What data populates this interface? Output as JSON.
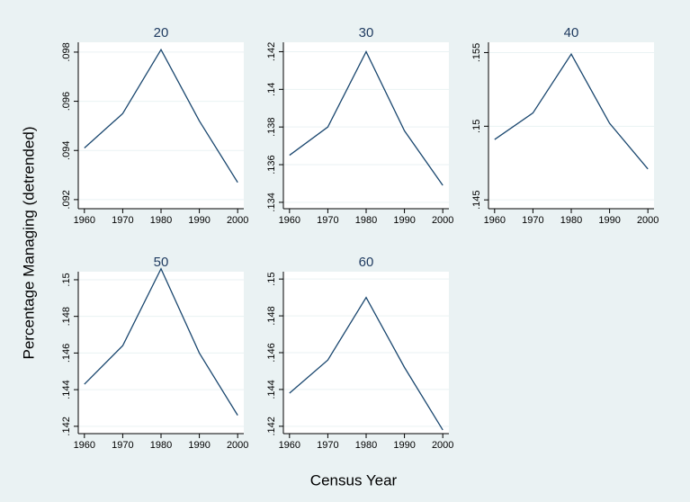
{
  "y_axis_label": "Percentage Managing (detrended)",
  "x_axis_label": "Census Year",
  "chart_data": [
    {
      "type": "line",
      "title": "20",
      "x": [
        1960,
        1970,
        1980,
        1990,
        2000
      ],
      "values": [
        0.0941,
        0.0955,
        0.0981,
        0.0952,
        0.0927
      ],
      "color": "#1a476f",
      "grid": true,
      "xlim": [
        1958.4,
        2001.6
      ],
      "xticks": [
        1960,
        1970,
        1980,
        1990,
        2000
      ],
      "ylim": [
        0.09163,
        0.0984
      ],
      "yticks": [
        {
          "value": 0.092,
          "label": ".092"
        },
        {
          "value": 0.094,
          "label": ".094"
        },
        {
          "value": 0.096,
          "label": ".096"
        },
        {
          "value": 0.098,
          "label": ".098"
        }
      ]
    },
    {
      "type": "line",
      "title": "30",
      "x": [
        1960,
        1970,
        1980,
        1990,
        2000
      ],
      "values": [
        0.1365,
        0.138,
        0.142,
        0.1378,
        0.1349
      ],
      "color": "#1a476f",
      "grid": true,
      "xlim": [
        1958.4,
        2001.6
      ],
      "xticks": [
        1960,
        1970,
        1980,
        1990,
        2000
      ],
      "ylim": [
        0.13366,
        0.1425
      ],
      "yticks": [
        {
          "value": 0.134,
          "label": ".134"
        },
        {
          "value": 0.136,
          "label": ".136"
        },
        {
          "value": 0.138,
          "label": ".138"
        },
        {
          "value": 0.14,
          "label": ".14"
        },
        {
          "value": 0.142,
          "label": ".142"
        }
      ]
    },
    {
      "type": "line",
      "title": "40",
      "x": [
        1960,
        1970,
        1980,
        1990,
        2000
      ],
      "values": [
        0.1491,
        0.1509,
        0.1549,
        0.1502,
        0.1471
      ],
      "color": "#1a476f",
      "grid": true,
      "xlim": [
        1958.4,
        2001.6
      ],
      "xticks": [
        1960,
        1970,
        1980,
        1990,
        2000
      ],
      "ylim": [
        0.1444,
        0.1557
      ],
      "yticks": [
        {
          "value": 0.145,
          "label": ".145"
        },
        {
          "value": 0.15,
          "label": ".15"
        },
        {
          "value": 0.155,
          "label": ".155"
        }
      ]
    },
    {
      "type": "line",
      "title": "50",
      "x": [
        1960,
        1970,
        1980,
        1990,
        2000
      ],
      "values": [
        0.1443,
        0.1464,
        0.1506,
        0.146,
        0.1426
      ],
      "color": "#1a476f",
      "grid": true,
      "xlim": [
        1958.4,
        2001.6
      ],
      "xticks": [
        1960,
        1970,
        1980,
        1990,
        2000
      ],
      "ylim": [
        0.1416,
        0.15044
      ],
      "yticks": [
        {
          "value": 0.142,
          "label": ".142"
        },
        {
          "value": 0.144,
          "label": ".144"
        },
        {
          "value": 0.146,
          "label": ".146"
        },
        {
          "value": 0.148,
          "label": ".148"
        },
        {
          "value": 0.15,
          "label": ".15"
        }
      ]
    },
    {
      "type": "line",
      "title": "60",
      "x": [
        1960,
        1970,
        1980,
        1990,
        2000
      ],
      "values": [
        0.1438,
        0.1456,
        0.149,
        0.1452,
        0.1418
      ],
      "color": "#1a476f",
      "grid": true,
      "xlim": [
        1958.4,
        2001.6
      ],
      "xticks": [
        1960,
        1970,
        1980,
        1990,
        2000
      ],
      "ylim": [
        0.1416,
        0.1504
      ],
      "yticks": [
        {
          "value": 0.142,
          "label": ".142"
        },
        {
          "value": 0.144,
          "label": ".144"
        },
        {
          "value": 0.146,
          "label": ".146"
        },
        {
          "value": 0.148,
          "label": ".148"
        },
        {
          "value": 0.15,
          "label": ".15"
        }
      ]
    }
  ]
}
